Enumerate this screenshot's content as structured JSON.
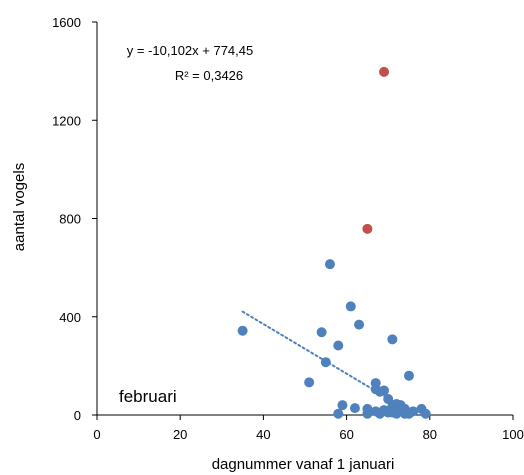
{
  "chart_data": {
    "type": "scatter",
    "xlabel": "dagnummer vanaf 1 januari",
    "ylabel": "aantal vogels",
    "xlim": [
      0,
      100
    ],
    "ylim": [
      0,
      1600
    ],
    "xticks": [
      0,
      20,
      40,
      60,
      80,
      100
    ],
    "yticks": [
      0,
      400,
      800,
      1200,
      1600
    ],
    "grid": false,
    "annotation": "februari",
    "trendline": {
      "equation": "y = -10,102x + 774,45",
      "r_squared": "R² = 0,3426",
      "slope": -10.102,
      "intercept": 774.45,
      "x_range": [
        35,
        76
      ],
      "style": "dotted",
      "color": "#4f81bd"
    },
    "series": [
      {
        "color": "#4f81bd",
        "points": [
          [
            35,
            343
          ],
          [
            51,
            133
          ],
          [
            54,
            337
          ],
          [
            55,
            215
          ],
          [
            56,
            614
          ],
          [
            58,
            283
          ],
          [
            58,
            5
          ],
          [
            59,
            40
          ],
          [
            61,
            442
          ],
          [
            62,
            28
          ],
          [
            63,
            368
          ],
          [
            65,
            25
          ],
          [
            65,
            5
          ],
          [
            67,
            130
          ],
          [
            67,
            105
          ],
          [
            67,
            15
          ],
          [
            68,
            95
          ],
          [
            68,
            5
          ],
          [
            69,
            100
          ],
          [
            69,
            20
          ],
          [
            70,
            65
          ],
          [
            70,
            10
          ],
          [
            71,
            308
          ],
          [
            71,
            35
          ],
          [
            71,
            10
          ],
          [
            72,
            45
          ],
          [
            72,
            25
          ],
          [
            72,
            5
          ],
          [
            73,
            40
          ],
          [
            73,
            15
          ],
          [
            74,
            5
          ],
          [
            74,
            25
          ],
          [
            75,
            160
          ],
          [
            75,
            5
          ],
          [
            76,
            15
          ],
          [
            78,
            25
          ],
          [
            79,
            5
          ]
        ]
      },
      {
        "color": "#c0504d",
        "points": [
          [
            65,
            758
          ],
          [
            69,
            1397
          ]
        ]
      }
    ]
  }
}
